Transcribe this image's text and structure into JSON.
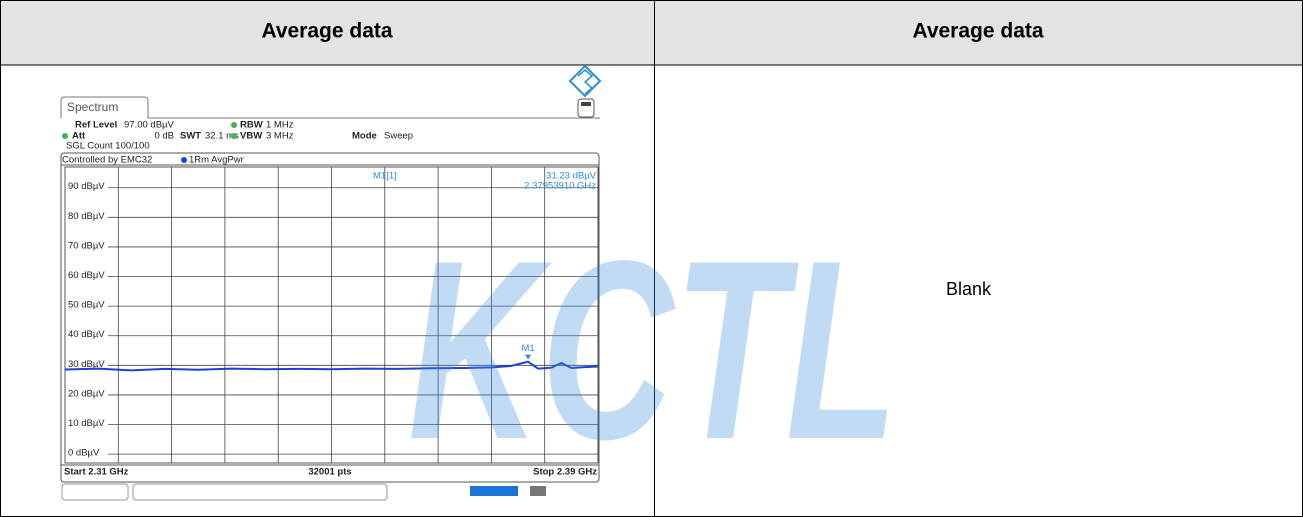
{
  "table": {
    "headers": [
      "Average data",
      "Average data"
    ],
    "right_cell": "Blank"
  },
  "watermark": "KCTL",
  "screenshot": {
    "tab": "Spectrum",
    "info": {
      "ref_level_label": "Ref Level",
      "ref_level": "97.00 dBµV",
      "att_label": "Att",
      "att": "0 dB",
      "swt_label": "SWT",
      "swt": "32.1 ms",
      "rbw_label": "RBW",
      "rbw": "1 MHz",
      "vbw_label": "VBW",
      "vbw": "3 MHz",
      "mode_label": "Mode",
      "mode": "Sweep",
      "count": "SGL Count 100/100",
      "controlled": "Controlled by EMC32",
      "trace_label": "1Rm AvgPwr"
    },
    "chart_data": {
      "type": "line",
      "ylim": [
        -3,
        97
      ],
      "xlim": [
        2.31,
        2.39
      ],
      "yticks": [
        {
          "value": 90,
          "label": "90 dBµV"
        },
        {
          "value": 80,
          "label": "80 dBµV"
        },
        {
          "value": 70,
          "label": "70 dBµV"
        },
        {
          "value": 60,
          "label": "60 dBµV"
        },
        {
          "value": 50,
          "label": "50 dBµV"
        },
        {
          "value": 40,
          "label": "40 dBµV"
        },
        {
          "value": 30,
          "label": "30 dBµV"
        },
        {
          "value": 20,
          "label": "20 dBµV"
        },
        {
          "value": 10,
          "label": "10 dBµV"
        },
        {
          "value": 0,
          "label": "0 dBµV"
        }
      ],
      "color": "#1f3fd6",
      "x": [
        2.31,
        2.315,
        2.32,
        2.325,
        2.33,
        2.335,
        2.34,
        2.345,
        2.35,
        2.355,
        2.36,
        2.365,
        2.37,
        2.374,
        2.377,
        2.3795,
        2.381,
        2.383,
        2.3845,
        2.386,
        2.388,
        2.39
      ],
      "values": [
        28.6,
        28.9,
        28.3,
        28.8,
        28.5,
        28.9,
        28.7,
        28.8,
        28.7,
        28.9,
        28.8,
        29.0,
        29.1,
        29.3,
        29.8,
        31.23,
        28.9,
        29.2,
        30.8,
        29.1,
        29.4,
        29.6
      ],
      "marker": {
        "label": "M1",
        "x": 2.3795,
        "y": 31.23,
        "readout_label": "M1[1]",
        "readout_value": "31.23 dBµV",
        "readout_freq": "2.37953910 GHz"
      },
      "start": "Start 2.31 GHz",
      "points": "32001 pts",
      "stop": "Stop 2.39 GHz"
    }
  }
}
